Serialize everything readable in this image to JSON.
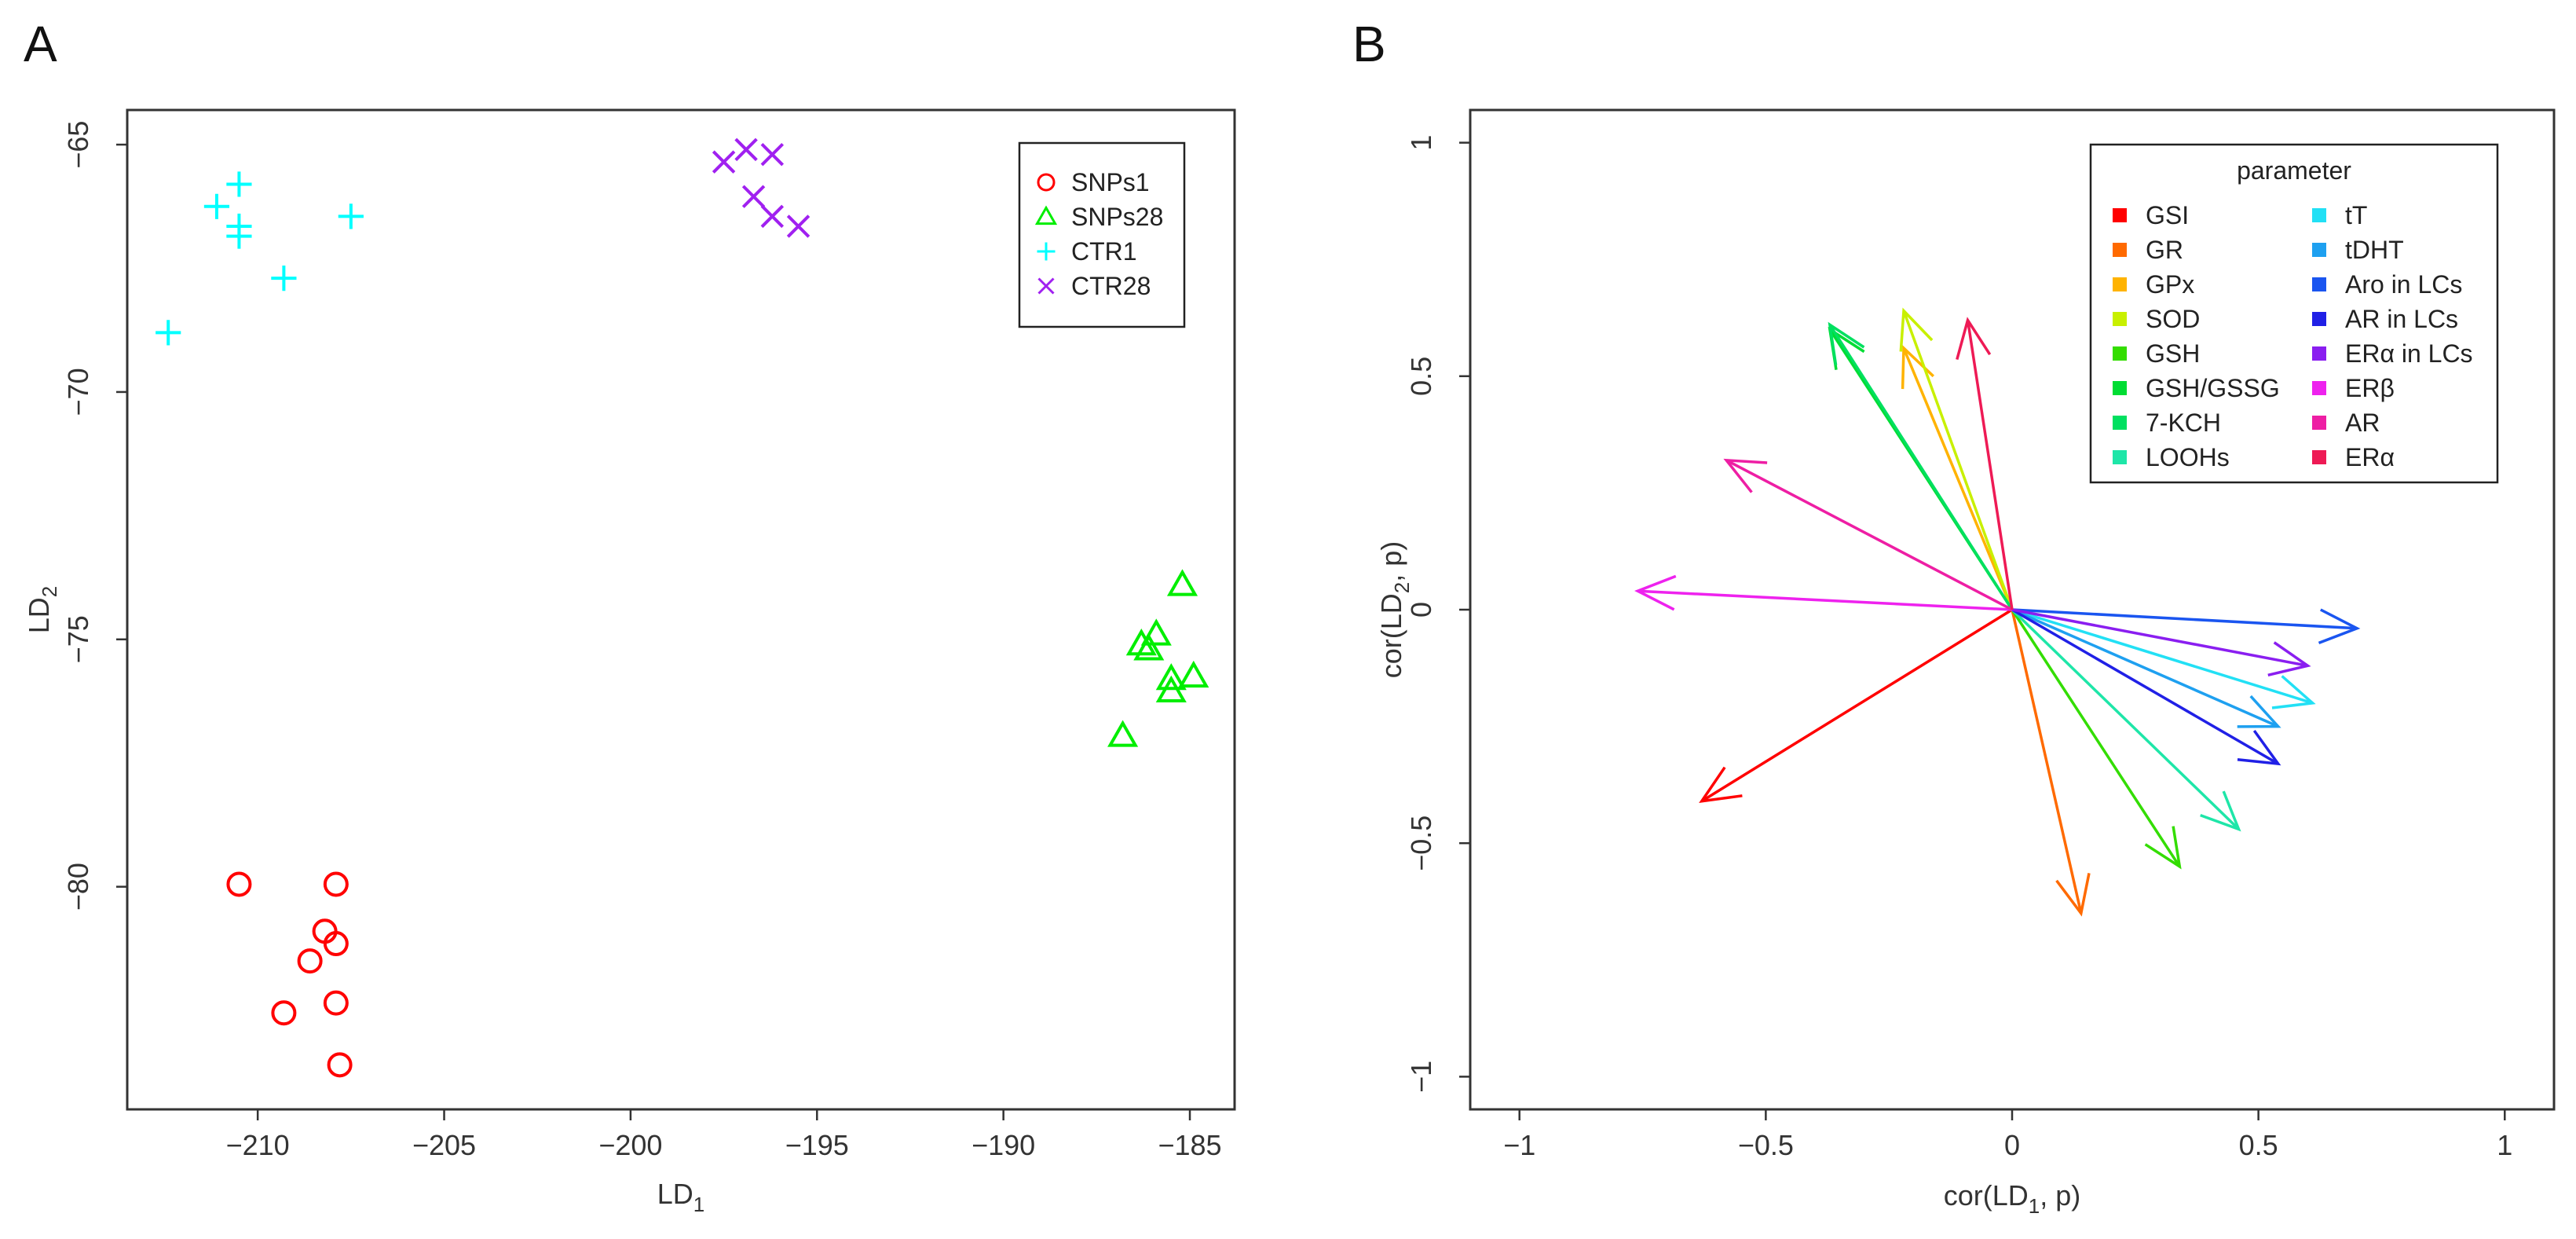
{
  "panels": {
    "a": "A",
    "b": "B"
  },
  "chart_data": [
    {
      "type": "scatter",
      "panel": "A",
      "title": "",
      "xlabel": {
        "main": "LD",
        "sub": "1"
      },
      "ylabel": {
        "main": "LD",
        "sub": "2"
      },
      "xlim": [
        -213.5,
        -183.8
      ],
      "ylim": [
        -84.5,
        -64.3
      ],
      "xticks": [
        -210,
        -205,
        -200,
        -195,
        -190,
        -185
      ],
      "xtick_labels": [
        "−210",
        "−205",
        "−200",
        "−195",
        "−190",
        "−185"
      ],
      "yticks": [
        -65,
        -70,
        -75,
        -80
      ],
      "ytick_labels": [
        "−65",
        "−70",
        "−75",
        "−80"
      ],
      "grid": false,
      "legend_position": "top-right",
      "series": [
        {
          "name": "SNPs1",
          "marker": "circle",
          "color": "#ff0000",
          "points": [
            [
              -210.5,
              -79.95
            ],
            [
              -207.9,
              -79.95
            ],
            [
              -208.2,
              -80.9
            ],
            [
              -207.9,
              -81.15
            ],
            [
              -208.6,
              -81.5
            ],
            [
              -209.3,
              -82.55
            ],
            [
              -207.9,
              -82.35
            ],
            [
              -207.8,
              -83.6
            ]
          ]
        },
        {
          "name": "SNPs28",
          "marker": "triangle",
          "color": "#00ee00",
          "points": [
            [
              -185.2,
              -73.9
            ],
            [
              -185.9,
              -74.9
            ],
            [
              -186.3,
              -75.1
            ],
            [
              -186.1,
              -75.2
            ],
            [
              -185.5,
              -75.8
            ],
            [
              -184.9,
              -75.75
            ],
            [
              -185.5,
              -76.05
            ],
            [
              -186.8,
              -76.95
            ]
          ]
        },
        {
          "name": "CTR1",
          "marker": "plus",
          "color": "#00ffff",
          "points": [
            [
              -210.5,
              -65.8
            ],
            [
              -211.1,
              -66.25
            ],
            [
              -210.5,
              -66.65
            ],
            [
              -210.5,
              -66.85
            ],
            [
              -207.5,
              -66.45
            ],
            [
              -209.3,
              -67.7
            ],
            [
              -212.4,
              -68.8
            ]
          ]
        },
        {
          "name": "CTR28",
          "marker": "cross",
          "color": "#a020f0",
          "points": [
            [
              -196.9,
              -65.1
            ],
            [
              -196.2,
              -65.2
            ],
            [
              -197.5,
              -65.35
            ],
            [
              -196.7,
              -66.05
            ],
            [
              -196.2,
              -66.45
            ],
            [
              -195.5,
              -66.65
            ]
          ]
        }
      ]
    },
    {
      "type": "vector",
      "panel": "B",
      "title": "",
      "xlabel": {
        "pre": "cor(LD",
        "sub": "1",
        "post": ", p)"
      },
      "ylabel": {
        "pre": "cor(LD",
        "sub": "2",
        "post": ", p)"
      },
      "xlim": [
        -1.1,
        1.1
      ],
      "ylim": [
        -1.07,
        1.07
      ],
      "xticks": [
        -1,
        -0.5,
        0,
        0.5,
        1
      ],
      "xtick_labels": [
        "−1",
        "−0.5",
        "0",
        "0.5",
        "1"
      ],
      "yticks": [
        1,
        0.5,
        0,
        -0.5,
        -1
      ],
      "ytick_labels": [
        "1",
        "0.5",
        "0",
        "−0.5",
        "−1"
      ],
      "grid": false,
      "legend_position": "top-right",
      "legend_title": "parameter",
      "vectors": [
        {
          "name": "GSI",
          "color": "#ff0000",
          "x": -0.63,
          "y": -0.41
        },
        {
          "name": "GR",
          "color": "#ff6a00",
          "x": 0.14,
          "y": -0.65
        },
        {
          "name": "GPx",
          "color": "#ffb300",
          "x": -0.22,
          "y": 0.56
        },
        {
          "name": "SOD",
          "color": "#c8f000",
          "x": -0.22,
          "y": 0.64
        },
        {
          "name": "GSH",
          "color": "#33dd00",
          "x": 0.34,
          "y": -0.55
        },
        {
          "name": "GSH/GSSG",
          "color": "#00dd33",
          "x": -0.37,
          "y": 0.6
        },
        {
          "name": "7-KCH",
          "color": "#00e060",
          "x": -0.37,
          "y": 0.61
        },
        {
          "name": "LOOHs",
          "color": "#1ee6a8",
          "x": 0.46,
          "y": -0.47
        },
        {
          "name": "tT",
          "color": "#22e0f5",
          "x": 0.61,
          "y": -0.2
        },
        {
          "name": "tDHT",
          "color": "#1ea0f0",
          "x": 0.54,
          "y": -0.25
        },
        {
          "name": "Aro in LCs",
          "color": "#1a55f0",
          "x": 0.7,
          "y": -0.04
        },
        {
          "name": "AR in LCs",
          "color": "#2020e6",
          "x": 0.54,
          "y": -0.33
        },
        {
          "name": "ERα in LCs",
          "color": "#8a1ef0",
          "x": 0.6,
          "y": -0.12
        },
        {
          "name": "ERβ",
          "color": "#ee22ee",
          "x": -0.76,
          "y": 0.04
        },
        {
          "name": "AR",
          "color": "#ee1ea4",
          "x": -0.58,
          "y": 0.32
        },
        {
          "name": "ERα",
          "color": "#ee1a55",
          "x": -0.09,
          "y": 0.62
        }
      ]
    }
  ]
}
